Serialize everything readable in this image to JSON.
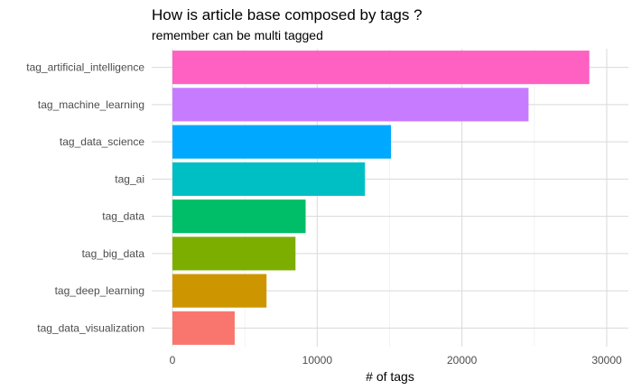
{
  "chart_data": {
    "type": "bar",
    "orientation": "horizontal",
    "title": "How is article base composed by tags ?",
    "subtitle": "remember can be multi tagged",
    "xlabel": "# of tags",
    "ylabel": "",
    "xlim": [
      0,
      30000
    ],
    "x_ticks": [
      0,
      10000,
      20000,
      30000
    ],
    "x_tick_labels": [
      "0",
      "10000",
      "20000",
      "30000"
    ],
    "grid": true,
    "legend": "none",
    "categories": [
      "tag_artificial_intelligence",
      "tag_machine_learning",
      "tag_data_science",
      "tag_ai",
      "tag_data",
      "tag_big_data",
      "tag_deep_learning",
      "tag_data_visualization"
    ],
    "values": [
      28800,
      24600,
      15100,
      13300,
      9200,
      8500,
      6500,
      4300
    ],
    "colors": [
      "#FF61C3",
      "#C77CFF",
      "#00A9FF",
      "#00BFC4",
      "#00BE67",
      "#7CAE00",
      "#CD9600",
      "#F8766D"
    ]
  }
}
